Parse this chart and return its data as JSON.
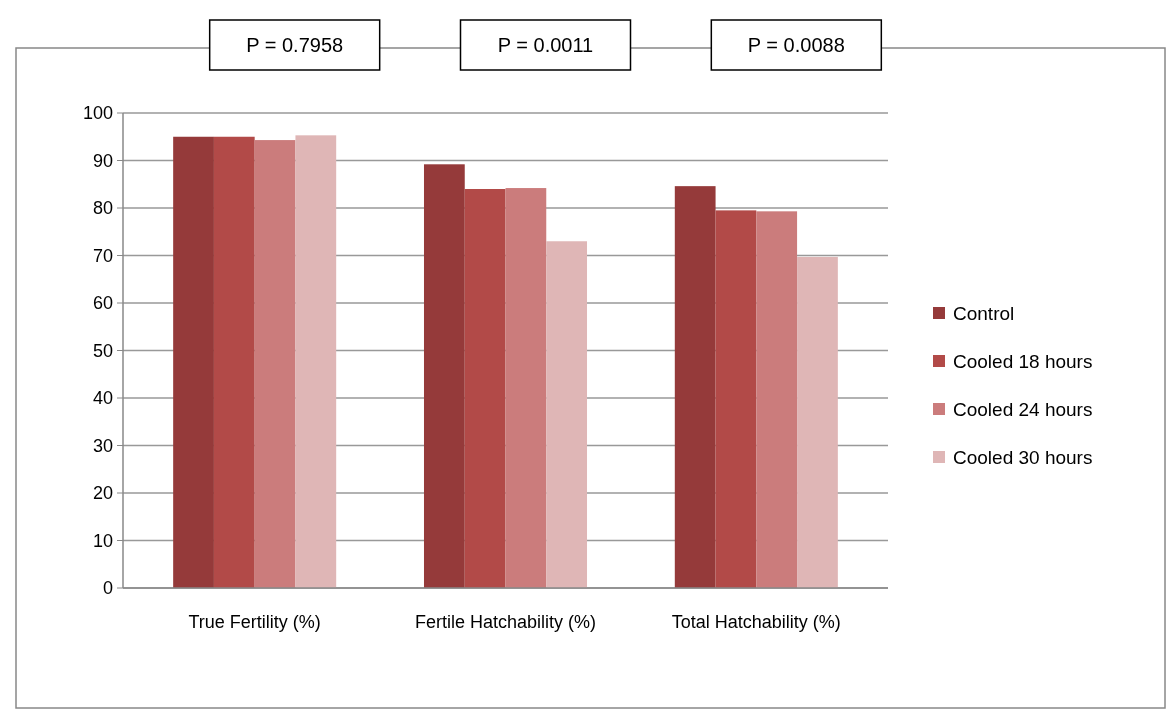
{
  "chart_data": {
    "type": "bar",
    "categories": [
      "True Fertility (%)",
      "Fertile Hatchability (%)",
      "Total Hatchability (%)"
    ],
    "series": [
      {
        "name": "Control",
        "color": "#953a3a",
        "values": [
          95.0,
          89.2,
          84.6
        ]
      },
      {
        "name": "Cooled 18 hours",
        "color": "#b24a48",
        "values": [
          95.0,
          84.0,
          79.5
        ]
      },
      {
        "name": "Cooled 24 hours",
        "color": "#cb7c7c",
        "values": [
          94.3,
          84.2,
          79.3
        ]
      },
      {
        "name": "Cooled 30 hours",
        "color": "#dfb6b6",
        "values": [
          95.3,
          73.0,
          69.7
        ]
      }
    ],
    "ylim": [
      0,
      100
    ],
    "yticks": [
      0,
      10,
      20,
      30,
      40,
      50,
      60,
      70,
      80,
      90,
      100
    ],
    "grid": "y",
    "legend": "right",
    "annotations": [
      "P = 0.7958",
      "P = 0.0011",
      "P = 0.0088"
    ]
  }
}
